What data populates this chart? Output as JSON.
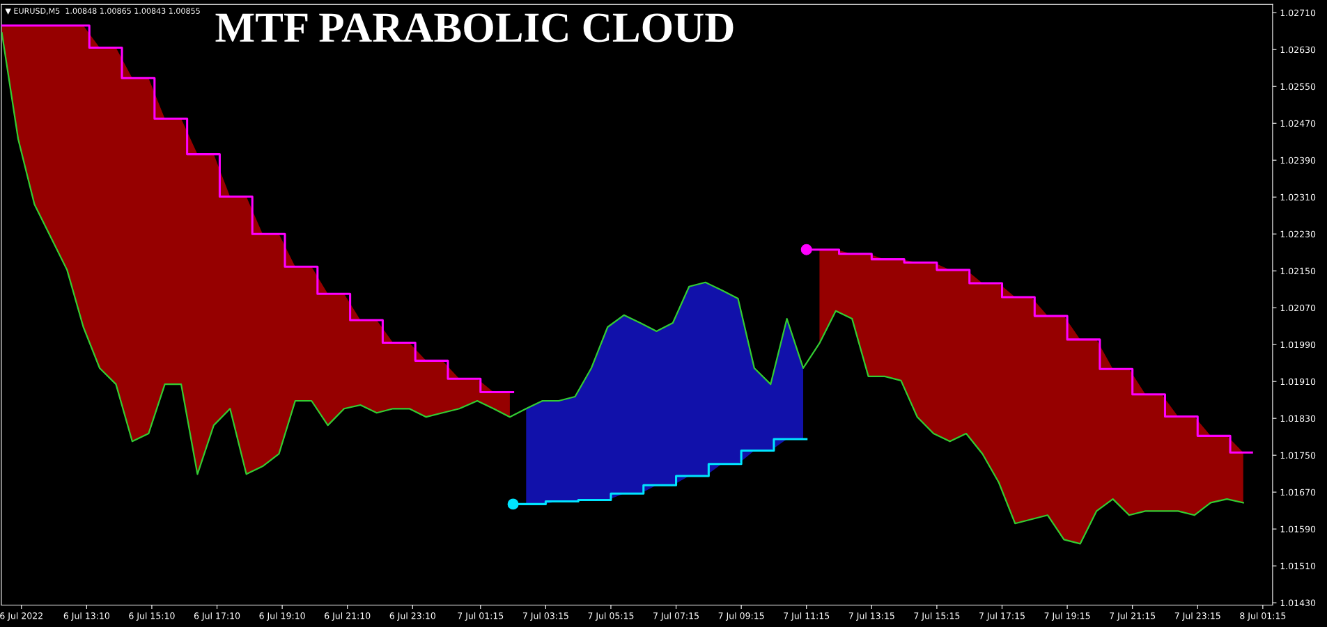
{
  "chart_data": {
    "type": "line",
    "title": "MTF PARABOLIC CLOUD",
    "annotations": [
      "▼ EURUSD,M5  1.00848 1.00865 1.00843 1.00855"
    ],
    "xlim": [
      "2022-07-06T10:33",
      "2022-07-08T01:33"
    ],
    "ylim": [
      1.01425,
      1.02728
    ],
    "xticks": [
      {
        "value": "2022-07-06T11:10",
        "label": "6 Jul 2022"
      },
      {
        "value": "2022-07-06T13:10",
        "label": "6 Jul 13:10"
      },
      {
        "value": "2022-07-06T15:10",
        "label": "6 Jul 15:10"
      },
      {
        "value": "2022-07-06T17:10",
        "label": "6 Jul 17:10"
      },
      {
        "value": "2022-07-06T19:10",
        "label": "6 Jul 19:10"
      },
      {
        "value": "2022-07-06T21:10",
        "label": "6 Jul 21:10"
      },
      {
        "value": "2022-07-06T23:10",
        "label": "6 Jul 23:10"
      },
      {
        "value": "2022-07-07T01:15",
        "label": "7 Jul 01:15"
      },
      {
        "value": "2022-07-07T03:15",
        "label": "7 Jul 03:15"
      },
      {
        "value": "2022-07-07T05:15",
        "label": "7 Jul 05:15"
      },
      {
        "value": "2022-07-07T07:15",
        "label": "7 Jul 07:15"
      },
      {
        "value": "2022-07-07T09:15",
        "label": "7 Jul 09:15"
      },
      {
        "value": "2022-07-07T11:15",
        "label": "7 Jul 11:15"
      },
      {
        "value": "2022-07-07T13:15",
        "label": "7 Jul 13:15"
      },
      {
        "value": "2022-07-07T15:15",
        "label": "7 Jul 15:15"
      },
      {
        "value": "2022-07-07T17:15",
        "label": "7 Jul 17:15"
      },
      {
        "value": "2022-07-07T19:15",
        "label": "7 Jul 19:15"
      },
      {
        "value": "2022-07-07T21:15",
        "label": "7 Jul 21:15"
      },
      {
        "value": "2022-07-07T23:15",
        "label": "7 Jul 23:15"
      },
      {
        "value": "2022-07-08T01:15",
        "label": "8 Jul 01:15"
      }
    ],
    "yticks": [
      {
        "value": 1.0143,
        "label": "1.01430"
      },
      {
        "value": 1.0151,
        "label": "1.01510"
      },
      {
        "value": 1.0159,
        "label": "1.01590"
      },
      {
        "value": 1.0167,
        "label": "1.01670"
      },
      {
        "value": 1.0175,
        "label": "1.01750"
      },
      {
        "value": 1.0183,
        "label": "1.01830"
      },
      {
        "value": 1.0191,
        "label": "1.01910"
      },
      {
        "value": 1.0199,
        "label": "1.01990"
      },
      {
        "value": 1.0207,
        "label": "1.02070"
      },
      {
        "value": 1.0215,
        "label": "1.02150"
      },
      {
        "value": 1.0223,
        "label": "1.02230"
      },
      {
        "value": 1.0231,
        "label": "1.02310"
      },
      {
        "value": 1.0239,
        "label": "1.02390"
      },
      {
        "value": 1.0247,
        "label": "1.02470"
      },
      {
        "value": 1.0255,
        "label": "1.02550"
      },
      {
        "value": 1.0263,
        "label": "1.02630"
      },
      {
        "value": 1.0271,
        "label": "1.02710"
      }
    ],
    "grid": false,
    "legend": false,
    "series": [
      {
        "color": "#32cd32",
        "x": [
          "2022-07-06T10:34",
          "2022-07-06T11:04",
          "2022-07-06T11:34",
          "2022-07-06T12:04",
          "2022-07-06T12:34",
          "2022-07-06T13:04",
          "2022-07-06T13:34",
          "2022-07-06T14:04",
          "2022-07-06T14:34",
          "2022-07-06T15:04",
          "2022-07-06T15:34",
          "2022-07-06T16:04",
          "2022-07-06T16:34",
          "2022-07-06T17:04",
          "2022-07-06T17:34",
          "2022-07-06T18:04",
          "2022-07-06T18:34",
          "2022-07-06T19:04",
          "2022-07-06T19:34",
          "2022-07-06T20:04",
          "2022-07-06T20:34",
          "2022-07-06T21:04",
          "2022-07-06T21:34",
          "2022-07-06T22:04",
          "2022-07-06T22:34",
          "2022-07-06T23:04",
          "2022-07-06T23:35",
          "2022-07-07T00:05",
          "2022-07-07T00:36",
          "2022-07-07T01:09",
          "2022-07-07T01:39",
          "2022-07-07T02:09",
          "2022-07-07T02:39",
          "2022-07-07T03:09",
          "2022-07-07T03:39",
          "2022-07-07T04:09",
          "2022-07-07T04:39",
          "2022-07-07T05:09",
          "2022-07-07T05:39",
          "2022-07-07T06:09",
          "2022-07-07T06:39",
          "2022-07-07T07:09",
          "2022-07-07T07:39",
          "2022-07-07T08:09",
          "2022-07-07T08:39",
          "2022-07-07T09:09",
          "2022-07-07T09:39",
          "2022-07-07T10:09",
          "2022-07-07T10:39",
          "2022-07-07T11:09",
          "2022-07-07T11:39",
          "2022-07-07T12:09",
          "2022-07-07T12:39",
          "2022-07-07T13:09",
          "2022-07-07T13:39",
          "2022-07-07T14:09",
          "2022-07-07T14:39",
          "2022-07-07T15:09",
          "2022-07-07T15:39",
          "2022-07-07T16:09",
          "2022-07-07T16:39",
          "2022-07-07T17:09",
          "2022-07-07T17:39",
          "2022-07-07T18:09",
          "2022-07-07T18:39",
          "2022-07-07T19:09",
          "2022-07-07T19:39",
          "2022-07-07T20:09",
          "2022-07-07T20:39",
          "2022-07-07T21:09",
          "2022-07-07T21:39",
          "2022-07-07T22:09",
          "2022-07-07T22:39",
          "2022-07-07T23:09",
          "2022-07-07T23:39",
          "2022-07-08T00:09",
          "2022-07-08T00:39"
        ],
        "values": [
          1.02666,
          1.02436,
          1.02294,
          1.02223,
          1.02152,
          1.02028,
          1.01939,
          1.01904,
          1.0178,
          1.01797,
          1.01904,
          1.01904,
          1.01709,
          1.01815,
          1.01851,
          1.01709,
          1.01726,
          1.01753,
          1.01868,
          1.01868,
          1.01815,
          1.01851,
          1.01859,
          1.01842,
          1.01851,
          1.01851,
          1.01833,
          1.01842,
          1.01851,
          1.01868,
          1.01851,
          1.01833,
          1.01851,
          1.01868,
          1.01868,
          1.01877,
          1.01939,
          1.02028,
          1.02054,
          1.02037,
          1.02019,
          1.02037,
          1.02116,
          1.02125,
          1.02108,
          1.0209,
          1.01939,
          1.01904,
          1.02046,
          1.01939,
          1.01993,
          1.02063,
          1.02046,
          1.01921,
          1.01921,
          1.01912,
          1.01833,
          1.01797,
          1.0178,
          1.01797,
          1.01753,
          1.01691,
          1.01602,
          1.01611,
          1.0162,
          1.01567,
          1.01558,
          1.01629,
          1.01655,
          1.0162,
          1.01629,
          1.01629,
          1.01629,
          1.0162,
          1.01647,
          1.01655,
          1.01647
        ]
      },
      {
        "type": "step",
        "color": "#ff00ff",
        "x": [
          "2022-07-06T10:33",
          "2022-07-06T13:15",
          "2022-07-06T14:15",
          "2022-07-06T15:15",
          "2022-07-06T16:15",
          "2022-07-06T17:15",
          "2022-07-06T18:15",
          "2022-07-06T19:15",
          "2022-07-06T20:15",
          "2022-07-06T21:15",
          "2022-07-06T22:15",
          "2022-07-06T23:15",
          "2022-07-07T00:15",
          "2022-07-07T01:15",
          "2022-07-07T02:15"
        ],
        "values": [
          1.02682,
          1.02634,
          1.02568,
          1.0248,
          1.02403,
          1.02311,
          1.0223,
          1.02159,
          1.021,
          1.02043,
          1.01994,
          1.01955,
          1.01916,
          1.01887,
          1.01887
        ]
      },
      {
        "type": "step",
        "color": "#00e5ff",
        "x": [
          "2022-07-07T02:15",
          "2022-07-07T03:15",
          "2022-07-07T04:15",
          "2022-07-07T05:15",
          "2022-07-07T06:15",
          "2022-07-07T07:15",
          "2022-07-07T08:15",
          "2022-07-07T09:15",
          "2022-07-07T10:15",
          "2022-07-07T11:15"
        ],
        "values": [
          1.01644,
          1.0165,
          1.01653,
          1.01667,
          1.01685,
          1.01705,
          1.01731,
          1.0176,
          1.01785,
          1.01785
        ]
      },
      {
        "type": "step",
        "color": "#ff00ff",
        "x": [
          "2022-07-07T11:15",
          "2022-07-07T12:15",
          "2022-07-07T13:15",
          "2022-07-07T14:15",
          "2022-07-07T15:15",
          "2022-07-07T16:15",
          "2022-07-07T17:15",
          "2022-07-07T18:15",
          "2022-07-07T19:15",
          "2022-07-07T20:15",
          "2022-07-07T21:15",
          "2022-07-07T22:15",
          "2022-07-07T23:15",
          "2022-07-08T00:15",
          "2022-07-08T00:55"
        ],
        "values": [
          1.02196,
          1.02187,
          1.02175,
          1.02168,
          1.02152,
          1.02123,
          1.02093,
          1.02052,
          1.02001,
          1.01937,
          1.01882,
          1.01834,
          1.01792,
          1.01756,
          1.01756
        ]
      },
      {
        "type": "scatter",
        "color": "#00e5ff",
        "marker": "circle",
        "x": [
          "2022-07-07T02:15"
        ],
        "values": [
          1.01644
        ]
      },
      {
        "type": "scatter",
        "color": "#ff00ff",
        "marker": "circle",
        "x": [
          "2022-07-07T11:15"
        ],
        "values": [
          1.02196
        ]
      }
    ]
  }
}
